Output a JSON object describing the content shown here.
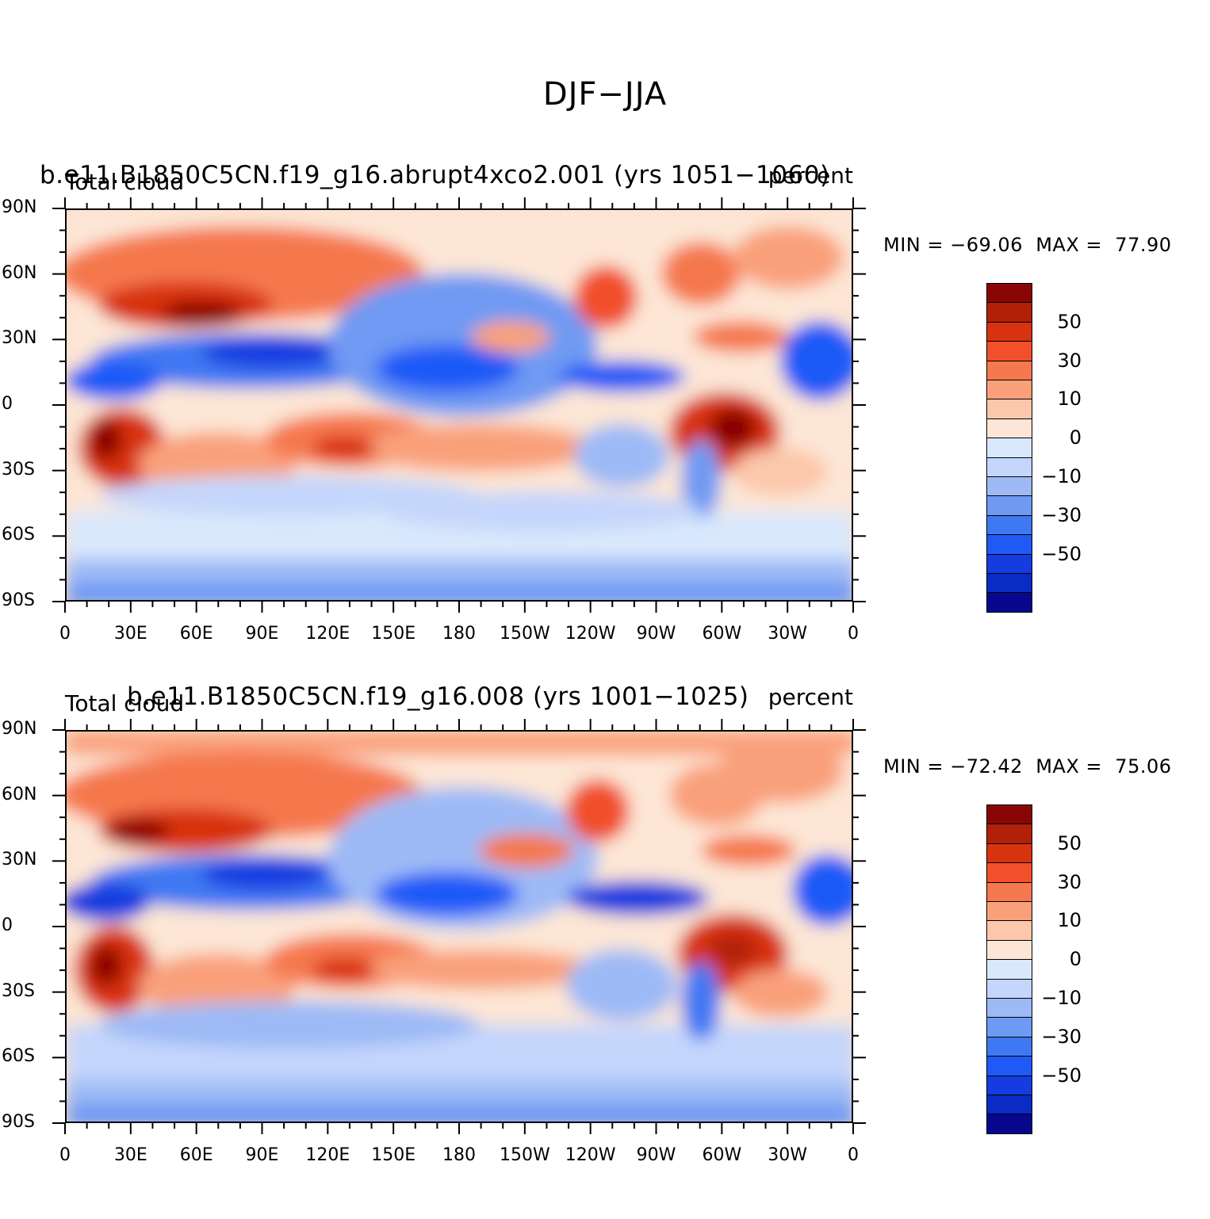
{
  "figure_title": "DJF−JJA",
  "colorbar": {
    "colors": [
      "#08088f",
      "#0a2bc4",
      "#143ce0",
      "#1f5af7",
      "#3f78f3",
      "#6f9af3",
      "#9dbaf6",
      "#c4d6fb",
      "#d9e8fc",
      "#fde6d5",
      "#fcc7aa",
      "#f9a07a",
      "#f5784e",
      "#f1502a",
      "#d8330f",
      "#b2200a",
      "#8a0505"
    ],
    "tick_labels": [
      "50",
      "30",
      "10",
      "0",
      "−10",
      "−30",
      "−50"
    ]
  },
  "axes": {
    "lat_labels": [
      "90N",
      "60N",
      "30N",
      "0",
      "30S",
      "60S",
      "90S"
    ],
    "lon_labels": [
      "0",
      "30E",
      "60E",
      "90E",
      "120E",
      "150E",
      "180",
      "150W",
      "120W",
      "90W",
      "60W",
      "30W",
      "0"
    ]
  },
  "panels": [
    {
      "run_title": "b.e11.B1850C5CN.f19_g16.abrupt4xco2.001 (yrs 1051−1060)",
      "left_label": "Total cloud",
      "right_label": "percent",
      "min_label": "MIN =",
      "min_value": "−69.06",
      "max_label": "MAX =",
      "max_value": "77.90"
    },
    {
      "run_title": "b.e11.B1850C5CN.f19_g16.008 (yrs 1001−1025)",
      "left_label": "Total cloud",
      "right_label": "percent",
      "min_label": "MIN =",
      "min_value": "−72.42",
      "max_label": "MAX =",
      "max_value": "75.06"
    }
  ]
}
